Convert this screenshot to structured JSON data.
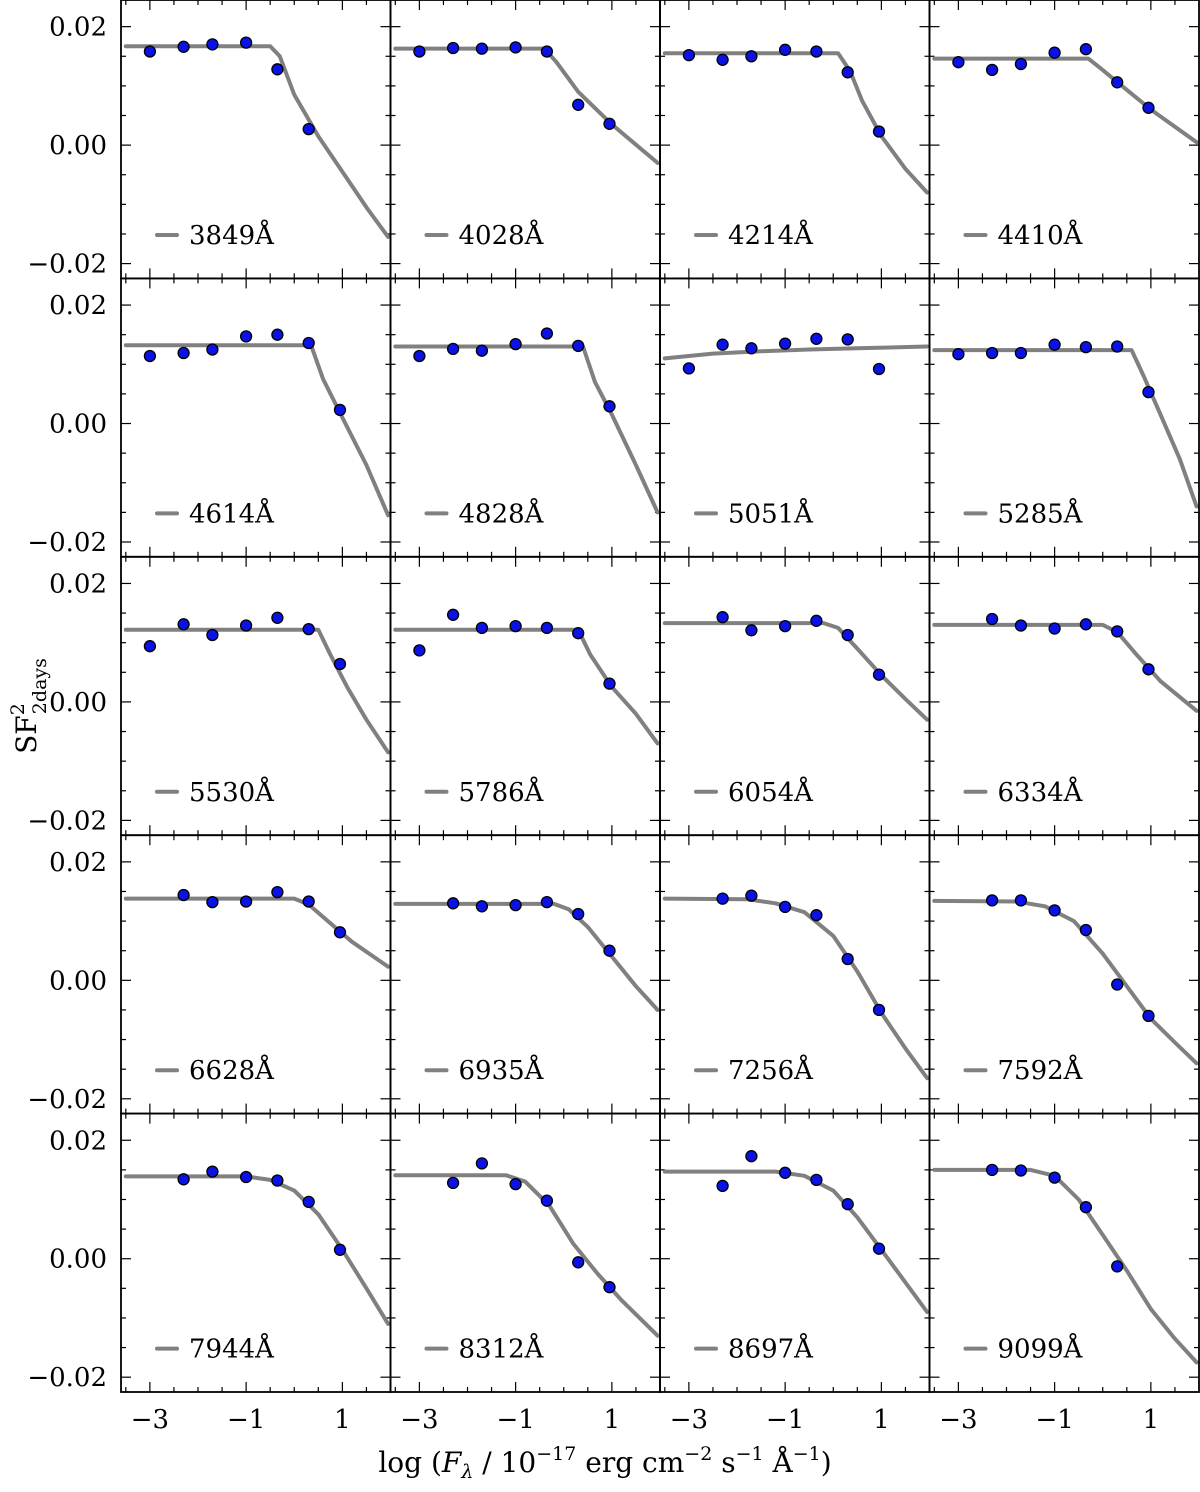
{
  "chart_data": {
    "type": "scatter",
    "layout_grid": {
      "rows": 5,
      "cols": 4
    },
    "xlabel": "log (Fλ / 10⁻¹⁷ erg cm⁻² s⁻¹ Å⁻¹)",
    "ylabel": "SF² 2days",
    "xlabel_parts": {
      "pre": "log (",
      "F": "F",
      "lambda": "λ",
      "mid1": " / 10",
      "exp1": "−17",
      "mid2": " erg cm",
      "exp2": "−2",
      "mid3": " s",
      "exp3": "−1",
      "mid4": " Å",
      "exp4": "−1",
      "post": ")"
    },
    "ylabel_parts": {
      "base": "SF",
      "sup": "2",
      "sub": "2days"
    },
    "xlim": [
      -3.6,
      2.0
    ],
    "ylim": [
      -0.0225,
      0.0245
    ],
    "xticks": [
      -3,
      -1,
      1
    ],
    "xtick_labels": [
      "−3",
      "−1",
      "1"
    ],
    "yticks": [
      -0.02,
      0.0,
      0.02
    ],
    "ytick_labels": [
      "−0.02",
      "0.00",
      "0.02"
    ],
    "grid": false,
    "legend_placement": "lower-left",
    "colors": {
      "points": "#0b12e6",
      "point_edge": "#000000",
      "line": "#808080"
    },
    "panels": [
      {
        "label": "3849Å",
        "points": [
          [
            -3.0,
            0.0158
          ],
          [
            -2.3,
            0.0166
          ],
          [
            -1.7,
            0.017
          ],
          [
            -1.0,
            0.0173
          ],
          [
            -0.35,
            0.0128
          ],
          [
            0.3,
            0.0027
          ]
        ],
        "fit": [
          [
            -3.5,
            0.0167
          ],
          [
            -0.5,
            0.0167
          ],
          [
            -0.3,
            0.015
          ],
          [
            0.0,
            0.0085
          ],
          [
            0.5,
            0.0015
          ],
          [
            1.0,
            -0.0045
          ],
          [
            1.5,
            -0.0105
          ],
          [
            1.95,
            -0.0155
          ]
        ]
      },
      {
        "label": "4028Å",
        "points": [
          [
            -3.0,
            0.0158
          ],
          [
            -2.3,
            0.0164
          ],
          [
            -1.7,
            0.0163
          ],
          [
            -1.0,
            0.0165
          ],
          [
            -0.35,
            0.0158
          ],
          [
            0.3,
            0.0068
          ],
          [
            0.95,
            0.0036
          ]
        ],
        "fit": [
          [
            -3.5,
            0.0163
          ],
          [
            -0.4,
            0.0163
          ],
          [
            -0.15,
            0.014
          ],
          [
            0.3,
            0.009
          ],
          [
            1.0,
            0.0035
          ],
          [
            1.95,
            -0.003
          ]
        ]
      },
      {
        "label": "4214Å",
        "points": [
          [
            -3.0,
            0.0152
          ],
          [
            -2.3,
            0.0144
          ],
          [
            -1.7,
            0.015
          ],
          [
            -1.0,
            0.0161
          ],
          [
            -0.35,
            0.0158
          ],
          [
            0.3,
            0.0123
          ],
          [
            0.95,
            0.0023
          ]
        ],
        "fit": [
          [
            -3.5,
            0.0155
          ],
          [
            0.1,
            0.0155
          ],
          [
            0.35,
            0.0125
          ],
          [
            0.6,
            0.0075
          ],
          [
            1.0,
            0.0015
          ],
          [
            1.5,
            -0.004
          ],
          [
            1.95,
            -0.008
          ]
        ]
      },
      {
        "label": "4410Å",
        "points": [
          [
            -3.0,
            0.014
          ],
          [
            -2.3,
            0.0127
          ],
          [
            -1.7,
            0.0137
          ],
          [
            -1.0,
            0.0156
          ],
          [
            -0.35,
            0.0162
          ],
          [
            0.3,
            0.0106
          ],
          [
            0.95,
            0.0063
          ]
        ],
        "fit": [
          [
            -3.5,
            0.0146
          ],
          [
            -0.3,
            0.0146
          ],
          [
            -0.05,
            0.013
          ],
          [
            0.4,
            0.01
          ],
          [
            1.0,
            0.006
          ],
          [
            1.95,
            0.0005
          ]
        ]
      },
      {
        "label": "4614Å",
        "points": [
          [
            -3.0,
            0.0114
          ],
          [
            -2.3,
            0.0119
          ],
          [
            -1.7,
            0.0125
          ],
          [
            -1.0,
            0.0147
          ],
          [
            -0.35,
            0.015
          ],
          [
            0.3,
            0.0136
          ],
          [
            0.95,
            0.0023
          ]
        ],
        "fit": [
          [
            -3.5,
            0.0132
          ],
          [
            0.35,
            0.0132
          ],
          [
            0.6,
            0.0075
          ],
          [
            1.0,
            0.001
          ],
          [
            1.5,
            -0.007
          ],
          [
            1.95,
            -0.0155
          ]
        ]
      },
      {
        "label": "4828Å",
        "points": [
          [
            -3.0,
            0.0114
          ],
          [
            -2.3,
            0.0126
          ],
          [
            -1.7,
            0.0123
          ],
          [
            -1.0,
            0.0134
          ],
          [
            -0.35,
            0.0152
          ],
          [
            0.3,
            0.0131
          ],
          [
            0.95,
            0.0029
          ]
        ],
        "fit": [
          [
            -3.5,
            0.013
          ],
          [
            0.4,
            0.013
          ],
          [
            0.65,
            0.007
          ],
          [
            1.0,
            0.0015
          ],
          [
            1.5,
            -0.007
          ],
          [
            1.95,
            -0.015
          ]
        ]
      },
      {
        "label": "5051Å",
        "points": [
          [
            -3.0,
            0.0093
          ],
          [
            -2.3,
            0.0133
          ],
          [
            -1.7,
            0.0127
          ],
          [
            -1.0,
            0.0135
          ],
          [
            -0.35,
            0.0143
          ],
          [
            0.3,
            0.0142
          ],
          [
            0.95,
            0.0092
          ]
        ],
        "fit": [
          [
            -3.5,
            0.011
          ],
          [
            -2.5,
            0.0118
          ],
          [
            -1.5,
            0.0122
          ],
          [
            -0.5,
            0.0125
          ],
          [
            0.5,
            0.0127
          ],
          [
            1.95,
            0.013
          ]
        ]
      },
      {
        "label": "5285Å",
        "points": [
          [
            -3.0,
            0.0117
          ],
          [
            -2.3,
            0.0119
          ],
          [
            -1.7,
            0.0119
          ],
          [
            -1.0,
            0.0133
          ],
          [
            -0.35,
            0.0129
          ],
          [
            0.3,
            0.013
          ],
          [
            0.95,
            0.0053
          ]
        ],
        "fit": [
          [
            -3.5,
            0.0124
          ],
          [
            0.6,
            0.0124
          ],
          [
            0.85,
            0.008
          ],
          [
            1.2,
            0.0015
          ],
          [
            1.6,
            -0.006
          ],
          [
            1.95,
            -0.014
          ]
        ]
      },
      {
        "label": "5530Å",
        "points": [
          [
            -3.0,
            0.0094
          ],
          [
            -2.3,
            0.0131
          ],
          [
            -1.7,
            0.0113
          ],
          [
            -1.0,
            0.0129
          ],
          [
            -0.35,
            0.0142
          ],
          [
            0.3,
            0.0123
          ],
          [
            0.95,
            0.0064
          ]
        ],
        "fit": [
          [
            -3.5,
            0.0122
          ],
          [
            0.5,
            0.0122
          ],
          [
            0.75,
            0.008
          ],
          [
            1.1,
            0.0025
          ],
          [
            1.5,
            -0.003
          ],
          [
            1.95,
            -0.0085
          ]
        ]
      },
      {
        "label": "5786Å",
        "points": [
          [
            -3.0,
            0.0087
          ],
          [
            -2.3,
            0.0147
          ],
          [
            -1.7,
            0.0125
          ],
          [
            -1.0,
            0.0128
          ],
          [
            -0.35,
            0.0125
          ],
          [
            0.3,
            0.0116
          ],
          [
            0.95,
            0.0031
          ]
        ],
        "fit": [
          [
            -3.5,
            0.0122
          ],
          [
            0.3,
            0.0122
          ],
          [
            0.55,
            0.008
          ],
          [
            1.0,
            0.0025
          ],
          [
            1.5,
            -0.002
          ],
          [
            1.95,
            -0.007
          ]
        ]
      },
      {
        "label": "6054Å",
        "points": [
          [
            -2.3,
            0.0143
          ],
          [
            -1.7,
            0.0121
          ],
          [
            -1.0,
            0.0128
          ],
          [
            -0.35,
            0.0137
          ],
          [
            0.3,
            0.0113
          ],
          [
            0.95,
            0.0046
          ]
        ],
        "fit": [
          [
            -3.5,
            0.0133
          ],
          [
            -0.2,
            0.0133
          ],
          [
            0.1,
            0.0125
          ],
          [
            0.5,
            0.009
          ],
          [
            1.0,
            0.0045
          ],
          [
            1.5,
            0.0005
          ],
          [
            1.95,
            -0.003
          ]
        ]
      },
      {
        "label": "6334Å",
        "points": [
          [
            -2.3,
            0.014
          ],
          [
            -1.7,
            0.0129
          ],
          [
            -1.0,
            0.0124
          ],
          [
            -0.35,
            0.0131
          ],
          [
            0.3,
            0.0119
          ],
          [
            0.95,
            0.0055
          ]
        ],
        "fit": [
          [
            -3.5,
            0.013
          ],
          [
            0.0,
            0.013
          ],
          [
            0.3,
            0.0118
          ],
          [
            0.7,
            0.008
          ],
          [
            1.2,
            0.0035
          ],
          [
            1.95,
            -0.0015
          ]
        ]
      },
      {
        "label": "6628Å",
        "points": [
          [
            -2.3,
            0.0144
          ],
          [
            -1.7,
            0.0132
          ],
          [
            -1.0,
            0.0133
          ],
          [
            -0.35,
            0.0149
          ],
          [
            0.3,
            0.0133
          ],
          [
            0.95,
            0.0081
          ]
        ],
        "fit": [
          [
            -3.5,
            0.0138
          ],
          [
            0.0,
            0.0138
          ],
          [
            0.3,
            0.0128
          ],
          [
            0.7,
            0.01
          ],
          [
            1.2,
            0.0065
          ],
          [
            1.95,
            0.0023
          ]
        ]
      },
      {
        "label": "6935Å",
        "points": [
          [
            -2.3,
            0.013
          ],
          [
            -1.7,
            0.0125
          ],
          [
            -1.0,
            0.0127
          ],
          [
            -0.35,
            0.0132
          ],
          [
            0.3,
            0.0112
          ],
          [
            0.95,
            0.005
          ]
        ],
        "fit": [
          [
            -3.5,
            0.0129
          ],
          [
            -0.2,
            0.0129
          ],
          [
            0.1,
            0.012
          ],
          [
            0.5,
            0.009
          ],
          [
            1.0,
            0.004
          ],
          [
            1.5,
            -0.001
          ],
          [
            1.95,
            -0.005
          ]
        ]
      },
      {
        "label": "7256Å",
        "points": [
          [
            -2.3,
            0.0138
          ],
          [
            -1.7,
            0.0143
          ],
          [
            -1.0,
            0.0124
          ],
          [
            -0.35,
            0.011
          ],
          [
            0.3,
            0.0036
          ],
          [
            0.95,
            -0.005
          ]
        ],
        "fit": [
          [
            -3.5,
            0.0138
          ],
          [
            -1.8,
            0.0137
          ],
          [
            -1.2,
            0.013
          ],
          [
            -0.6,
            0.0115
          ],
          [
            0.0,
            0.0075
          ],
          [
            0.5,
            0.0015
          ],
          [
            1.0,
            -0.0055
          ],
          [
            1.5,
            -0.0115
          ],
          [
            1.95,
            -0.0165
          ]
        ]
      },
      {
        "label": "7592Å",
        "points": [
          [
            -2.3,
            0.0135
          ],
          [
            -1.7,
            0.0135
          ],
          [
            -1.0,
            0.0118
          ],
          [
            -0.35,
            0.0085
          ],
          [
            0.3,
            -0.0007
          ],
          [
            0.95,
            -0.006
          ]
        ],
        "fit": [
          [
            -3.5,
            0.0134
          ],
          [
            -1.8,
            0.0133
          ],
          [
            -1.2,
            0.0125
          ],
          [
            -0.6,
            0.01
          ],
          [
            0.0,
            0.0045
          ],
          [
            0.5,
            -0.001
          ],
          [
            1.0,
            -0.0065
          ],
          [
            1.5,
            -0.0105
          ],
          [
            1.95,
            -0.014
          ]
        ]
      },
      {
        "label": "7944Å",
        "points": [
          [
            -2.3,
            0.0134
          ],
          [
            -1.7,
            0.0147
          ],
          [
            -1.0,
            0.0138
          ],
          [
            -0.35,
            0.0132
          ],
          [
            0.3,
            0.0096
          ],
          [
            0.95,
            0.0015
          ]
        ],
        "fit": [
          [
            -3.5,
            0.0139
          ],
          [
            -1.0,
            0.0139
          ],
          [
            -0.5,
            0.0133
          ],
          [
            0.0,
            0.0115
          ],
          [
            0.5,
            0.0075
          ],
          [
            1.0,
            0.0015
          ],
          [
            1.5,
            -0.005
          ],
          [
            1.95,
            -0.011
          ]
        ]
      },
      {
        "label": "8312Å",
        "points": [
          [
            -2.3,
            0.0128
          ],
          [
            -1.7,
            0.0161
          ],
          [
            -1.0,
            0.0126
          ],
          [
            -0.35,
            0.0098
          ],
          [
            0.3,
            -0.0006
          ],
          [
            0.95,
            -0.0048
          ]
        ],
        "fit": [
          [
            -3.5,
            0.0141
          ],
          [
            -1.2,
            0.0141
          ],
          [
            -0.8,
            0.013
          ],
          [
            -0.3,
            0.009
          ],
          [
            0.2,
            0.0025
          ],
          [
            0.7,
            -0.0025
          ],
          [
            1.2,
            -0.007
          ],
          [
            1.95,
            -0.013
          ]
        ]
      },
      {
        "label": "8697Å",
        "points": [
          [
            -2.3,
            0.0123
          ],
          [
            -1.7,
            0.0173
          ],
          [
            -1.0,
            0.0145
          ],
          [
            -0.35,
            0.0133
          ],
          [
            0.3,
            0.0092
          ],
          [
            0.95,
            0.0017
          ]
        ],
        "fit": [
          [
            -3.5,
            0.0147
          ],
          [
            -1.2,
            0.0147
          ],
          [
            -0.6,
            0.014
          ],
          [
            0.0,
            0.0115
          ],
          [
            0.5,
            0.007
          ],
          [
            1.0,
            0.0015
          ],
          [
            1.5,
            -0.004
          ],
          [
            1.95,
            -0.009
          ]
        ]
      },
      {
        "label": "9099Å",
        "points": [
          [
            -2.3,
            0.015
          ],
          [
            -1.7,
            0.0149
          ],
          [
            -1.0,
            0.0137
          ],
          [
            -0.35,
            0.0087
          ],
          [
            0.3,
            -0.0013
          ]
        ],
        "fit": [
          [
            -3.5,
            0.015
          ],
          [
            -1.5,
            0.015
          ],
          [
            -1.0,
            0.014
          ],
          [
            -0.5,
            0.01
          ],
          [
            0.0,
            0.004
          ],
          [
            0.5,
            -0.002
          ],
          [
            1.0,
            -0.0085
          ],
          [
            1.5,
            -0.0135
          ],
          [
            1.95,
            -0.0175
          ]
        ]
      }
    ]
  }
}
